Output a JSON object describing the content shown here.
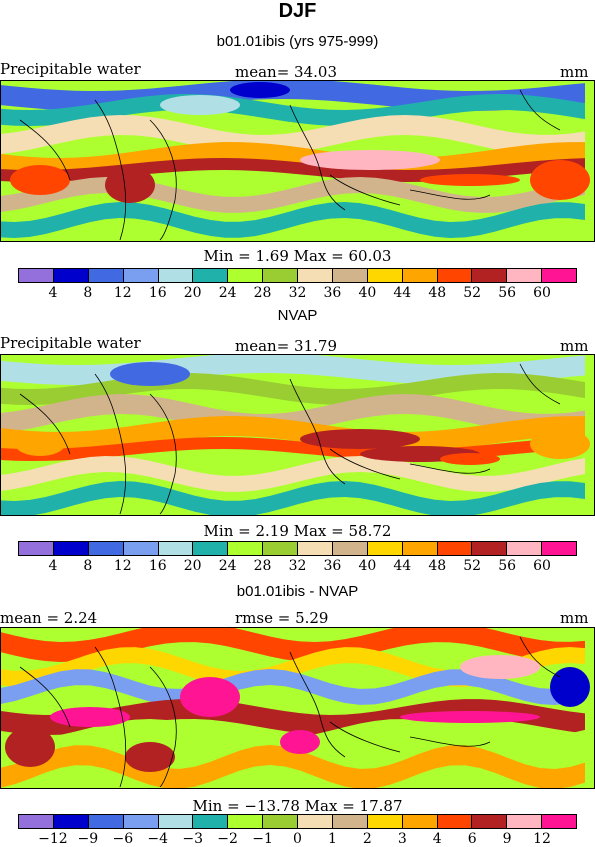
{
  "title": "DJF",
  "panels": [
    {
      "title": "b01.01ibis (yrs 975-999)",
      "left_label": "Precipitable water",
      "center_label": "mean=  34.03",
      "right_label": "mm",
      "stats": "Min =    1.69  Max =   60.03",
      "ticks": [
        "4",
        "8",
        "12",
        "16",
        "20",
        "24",
        "28",
        "32",
        "36",
        "40",
        "44",
        "48",
        "52",
        "56",
        "60"
      ],
      "colors": [
        "#9370db",
        "#0000cd",
        "#4169e1",
        "#7b9ff0",
        "#b0e0e6",
        "#20b2aa",
        "#adff2f",
        "#9acd32",
        "#f5deb3",
        "#d2b48c",
        "#ffd700",
        "#ffa500",
        "#ff4500",
        "#b22222",
        "#ffb6c1",
        "#ff1493"
      ]
    },
    {
      "title": "NVAP",
      "left_label": "Precipitable water",
      "center_label": "mean=  31.79",
      "right_label": "mm",
      "stats": "Min =    2.19  Max =   58.72",
      "ticks": [
        "4",
        "8",
        "12",
        "16",
        "20",
        "24",
        "28",
        "32",
        "36",
        "40",
        "44",
        "48",
        "52",
        "56",
        "60"
      ],
      "colors": [
        "#9370db",
        "#0000cd",
        "#4169e1",
        "#7b9ff0",
        "#b0e0e6",
        "#20b2aa",
        "#adff2f",
        "#9acd32",
        "#f5deb3",
        "#d2b48c",
        "#ffd700",
        "#ffa500",
        "#ff4500",
        "#b22222",
        "#ffb6c1",
        "#ff1493"
      ]
    },
    {
      "title": "b01.01ibis - NVAP",
      "left_label": "mean =     2.24",
      "center_label": "rmse =     5.29",
      "right_label": "mm",
      "stats": "Min = −13.78  Max =   17.87",
      "ticks": [
        "−12",
        "−9",
        "−6",
        "−4",
        "−3",
        "−2",
        "−1",
        "0",
        "1",
        "2",
        "3",
        "4",
        "6",
        "9",
        "12"
      ],
      "colors": [
        "#9370db",
        "#0000cd",
        "#4169e1",
        "#7b9ff0",
        "#b0e0e6",
        "#20b2aa",
        "#adff2f",
        "#9acd32",
        "#f5deb3",
        "#d2b48c",
        "#ffd700",
        "#ffa500",
        "#ff4500",
        "#b22222",
        "#ffb6c1",
        "#ff1493"
      ]
    }
  ]
}
